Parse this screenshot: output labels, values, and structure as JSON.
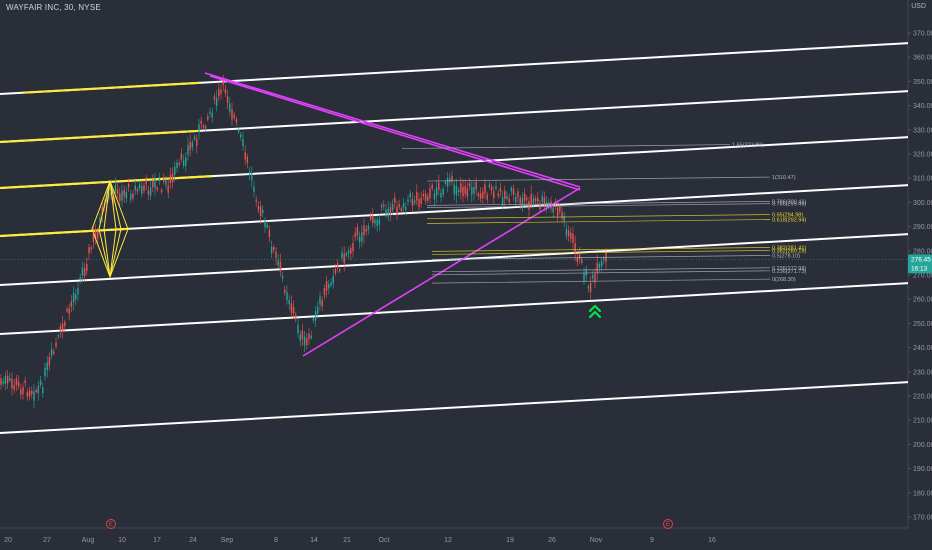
{
  "header": {
    "title": "WAYFAIR INC, 30, NYSE",
    "currency": "USD"
  },
  "price_tag": {
    "price": "276.45",
    "countdown": "16:13"
  },
  "earnings_marker": "E",
  "colors": {
    "background": "#2a2e39",
    "channel": "#ffffff",
    "channel_highlight": "#ffeb3b",
    "triangle": "#e040fb",
    "fib_yellow": "#e6d52a",
    "fib_white": "#b2b5be",
    "candle_up": "#26a69a",
    "candle_down": "#ef5350",
    "arrow": "#00e64d",
    "price_tag": "#26a69a"
  },
  "chart_data": {
    "type": "candlestick",
    "title": "WAYFAIR INC, 30, NYSE",
    "y_axis": {
      "unit": "USD",
      "ticks": [
        "370.00",
        "360.00",
        "350.00",
        "340.00",
        "330.00",
        "320.00",
        "310.00",
        "300.00",
        "290.00",
        "280.00",
        "270.00",
        "260.00",
        "250.00",
        "240.00",
        "230.00",
        "220.00",
        "210.00",
        "200.00",
        "190.00",
        "180.00",
        "170.00"
      ],
      "range": [
        163,
        382
      ]
    },
    "x_axis": {
      "ticks": [
        "20",
        "27",
        "Aug",
        "10",
        "17",
        "24",
        "Sep",
        "8",
        "14",
        "21",
        "Oct",
        "12",
        "19",
        "26",
        "Nov",
        "9",
        "16"
      ]
    },
    "price_path": [
      {
        "x": "20",
        "y": 226
      },
      {
        "x": "27",
        "y": 222
      },
      {
        "x": "Aug",
        "y": 268
      },
      {
        "x": "10",
        "y": 303
      },
      {
        "x": "17",
        "y": 308
      },
      {
        "x": "24",
        "y": 348
      },
      {
        "x": "Sep",
        "y": 291
      },
      {
        "x": "Sep",
        "y": 240
      },
      {
        "x": "8",
        "y": 268
      },
      {
        "x": "14",
        "y": 285
      },
      {
        "x": "21",
        "y": 297
      },
      {
        "x": "Oct",
        "y": 307
      },
      {
        "x": "12",
        "y": 302
      },
      {
        "x": "19",
        "y": 297
      },
      {
        "x": "26",
        "y": 265
      },
      {
        "x": "26",
        "y": 276.45
      }
    ],
    "last_price": 276.45,
    "drawings": [
      "parallel channel (white)",
      "symmetrical triangle (magenta)",
      "yellow diamond pattern",
      "fibonacci extension levels",
      "green double up-arrow"
    ],
    "fib_levels": [
      {
        "label": "1.65(323.89)",
        "price": 323.89
      },
      {
        "label": "1(310.47)",
        "price": 310.47
      },
      {
        "label": "0.786(300.41)",
        "price": 300.41
      },
      {
        "label": "0.786(299.49)",
        "price": 299.49
      },
      {
        "label": "0.65(294.98)",
        "price": 294.98
      },
      {
        "label": "0.618(292.94)",
        "price": 292.94
      },
      {
        "label": "0.5(278.10)",
        "price": 278.1
      },
      {
        "label": "0.382(281.41)",
        "price": 281.41
      },
      {
        "label": "0.382(280.15)",
        "price": 280.15
      },
      {
        "label": "0.236(272.98)",
        "price": 272.98
      },
      {
        "label": "0.236(271.73)",
        "price": 271.73
      },
      {
        "label": "0(268.30)",
        "price": 268.3
      }
    ],
    "grid": false
  }
}
